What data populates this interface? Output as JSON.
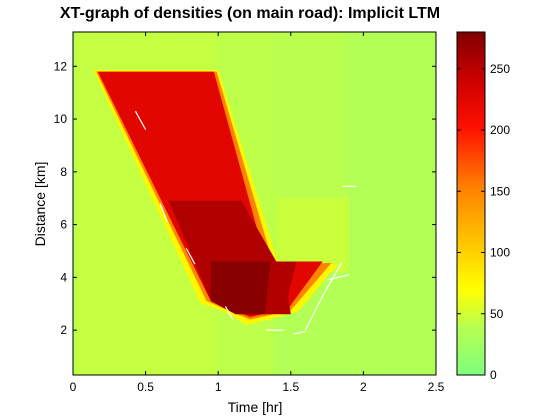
{
  "chart_data": {
    "type": "heatmap",
    "title": "XT-graph of densities (on main road): Implicit LTM",
    "xlabel": "Time [hr]",
    "ylabel": "Distance [km]",
    "xlim": [
      0,
      2.5
    ],
    "ylim": [
      0.3,
      13.3
    ],
    "x_ticks": [
      "0",
      "0.5",
      "1",
      "1.5",
      "2",
      "2.5"
    ],
    "y_ticks": [
      "2",
      "4",
      "6",
      "8",
      "10",
      "12"
    ],
    "colorbar": {
      "range": [
        0,
        280
      ],
      "ticks": [
        "0",
        "50",
        "100",
        "150",
        "200",
        "250"
      ],
      "colormap": "jet-like (green-yellow-red-darkred)"
    },
    "background_density": 35,
    "regions": [
      {
        "name": "upstream inflow band",
        "polygon": [
          [
            0.02,
            0.3
          ],
          [
            0.98,
            0.3
          ],
          [
            0.98,
            13.3
          ],
          [
            0.02,
            13.3
          ]
        ],
        "density": 45
      },
      {
        "name": "early band right",
        "polygon": [
          [
            0.98,
            0.3
          ],
          [
            1.38,
            0.3
          ],
          [
            1.38,
            13.3
          ],
          [
            0.98,
            13.3
          ]
        ],
        "density": 42
      },
      {
        "name": "upper band",
        "polygon": [
          [
            1.38,
            5.0
          ],
          [
            1.88,
            5.0
          ],
          [
            1.88,
            13.3
          ],
          [
            1.38,
            13.3
          ]
        ],
        "density": 40
      },
      {
        "name": "right shoulder",
        "polygon": [
          [
            1.4,
            4.2
          ],
          [
            1.9,
            4.2
          ],
          [
            1.9,
            7.0
          ],
          [
            1.4,
            7.0
          ]
        ],
        "density": 47
      },
      {
        "name": "queue front yellow",
        "polygon": [
          [
            0.14,
            11.85
          ],
          [
            1.0,
            11.85
          ],
          [
            1.42,
            4.4
          ],
          [
            1.82,
            4.5
          ],
          [
            1.55,
            2.7
          ],
          [
            1.2,
            2.2
          ],
          [
            1.0,
            2.8
          ],
          [
            0.88,
            3.0
          ],
          [
            0.14,
            11.85
          ]
        ],
        "density": 75
      },
      {
        "name": "queue orange",
        "polygon": [
          [
            0.16,
            11.8
          ],
          [
            0.99,
            11.8
          ],
          [
            1.38,
            4.5
          ],
          [
            1.78,
            4.55
          ],
          [
            1.5,
            2.75
          ],
          [
            1.22,
            2.4
          ],
          [
            0.92,
            3.1
          ],
          [
            0.16,
            11.8
          ]
        ],
        "density": 150
      },
      {
        "name": "congested red",
        "polygon": [
          [
            0.17,
            11.8
          ],
          [
            0.97,
            11.8
          ],
          [
            1.33,
            4.6
          ],
          [
            1.72,
            4.6
          ],
          [
            1.48,
            2.8
          ],
          [
            1.22,
            2.5
          ],
          [
            0.95,
            3.1
          ],
          [
            0.17,
            11.8
          ]
        ],
        "density": 225
      },
      {
        "name": "dense dark red",
        "polygon": [
          [
            0.66,
            6.9
          ],
          [
            1.16,
            6.9
          ],
          [
            1.4,
            4.6
          ],
          [
            1.54,
            4.6
          ],
          [
            1.48,
            3.3
          ],
          [
            1.5,
            2.6
          ],
          [
            1.22,
            2.6
          ],
          [
            0.95,
            3.1
          ],
          [
            0.66,
            6.9
          ]
        ],
        "density": 255
      },
      {
        "name": "jam core",
        "polygon": [
          [
            0.95,
            4.6
          ],
          [
            1.36,
            4.6
          ],
          [
            1.32,
            2.6
          ],
          [
            1.12,
            2.6
          ],
          [
            0.95,
            3.1
          ],
          [
            0.95,
            4.6
          ]
        ],
        "density": 275
      }
    ],
    "boundary_lines": [
      [
        [
          0.43,
          10.3
        ],
        [
          0.5,
          9.6
        ]
      ],
      [
        [
          0.6,
          6.8
        ],
        [
          0.65,
          6.1
        ]
      ],
      [
        [
          0.78,
          5.1
        ],
        [
          0.84,
          4.5
        ]
      ],
      [
        [
          1.05,
          2.9
        ],
        [
          1.1,
          2.4
        ]
      ],
      [
        [
          1.33,
          2.0
        ],
        [
          1.45,
          2.0
        ]
      ],
      [
        [
          1.52,
          1.85
        ],
        [
          1.6,
          1.95
        ]
      ],
      [
        [
          1.6,
          2.0
        ],
        [
          1.72,
          3.3
        ]
      ],
      [
        [
          1.72,
          3.3
        ],
        [
          1.85,
          4.55
        ]
      ],
      [
        [
          1.75,
          3.9
        ],
        [
          1.9,
          4.1
        ]
      ],
      [
        [
          1.86,
          7.45
        ],
        [
          1.95,
          7.45
        ]
      ]
    ]
  }
}
